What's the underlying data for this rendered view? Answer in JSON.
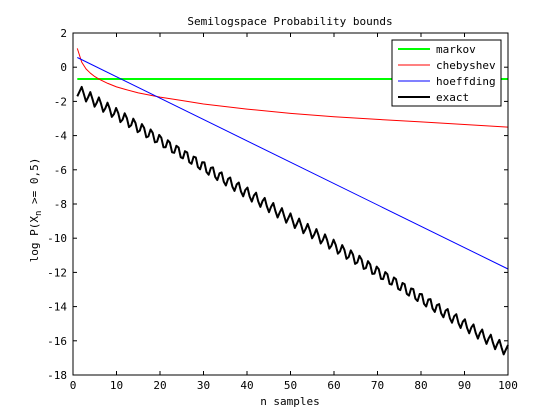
{
  "chart_data": {
    "type": "line",
    "title": "Semilogspace Probability bounds",
    "xlabel": "n samples",
    "ylabel": "log P(X",
    "ylabel_sub": "n",
    "ylabel_tail": " >= 0,5)",
    "xlim": [
      0,
      100
    ],
    "ylim": [
      -18,
      2
    ],
    "xticks": [
      0,
      10,
      20,
      30,
      40,
      50,
      60,
      70,
      80,
      90,
      100
    ],
    "yticks": [
      2,
      0,
      -2,
      -4,
      -6,
      -8,
      -10,
      -12,
      -14,
      -16,
      -18
    ],
    "grid": false,
    "legend_position": "top-right",
    "series": [
      {
        "name": "markov",
        "color": "#00ff00",
        "width": 2,
        "x": [
          1,
          100
        ],
        "y": [
          -0.69,
          -0.69
        ]
      },
      {
        "name": "chebyshev",
        "color": "#ff0000",
        "width": 1,
        "x": [
          1,
          2,
          3,
          4,
          5,
          6,
          8,
          10,
          12,
          15,
          20,
          25,
          30,
          40,
          50,
          60,
          70,
          80,
          90,
          100
        ],
        "y": [
          1.1,
          0.3,
          -0.1,
          -0.35,
          -0.55,
          -0.7,
          -0.95,
          -1.15,
          -1.3,
          -1.5,
          -1.75,
          -1.95,
          -2.15,
          -2.45,
          -2.7,
          -2.9,
          -3.05,
          -3.2,
          -3.35,
          -3.5
        ]
      },
      {
        "name": "hoeffding",
        "color": "#0000ff",
        "width": 1,
        "x": [
          1,
          100
        ],
        "y": [
          0.57,
          -11.8
        ]
      },
      {
        "name": "exact",
        "color": "#000000",
        "width": 2,
        "trend_x": [
          1,
          100
        ],
        "trend_y": [
          -1.35,
          -16.6
        ],
        "oscillation_amplitude": 0.35,
        "oscillation_period": 2
      }
    ]
  }
}
